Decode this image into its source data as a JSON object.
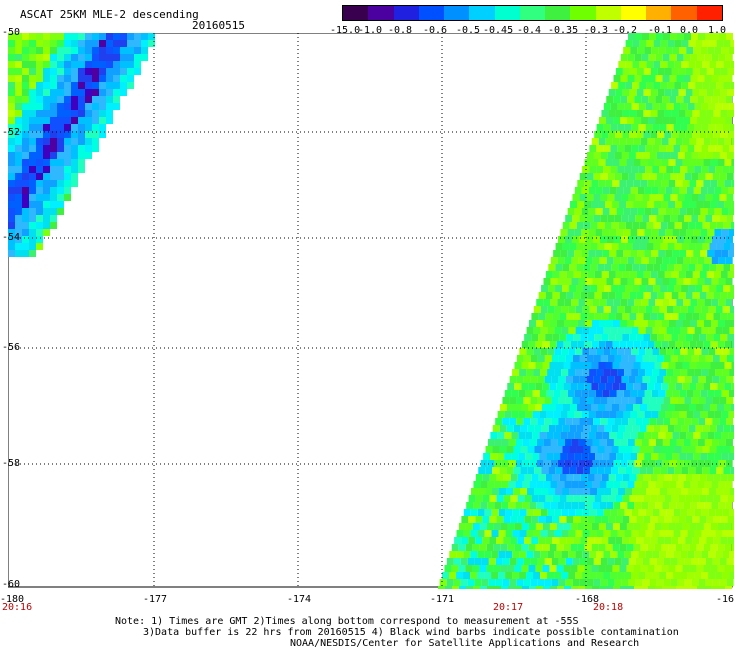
{
  "header": {
    "title": "ASCAT 25KM MLE-2 descending",
    "date": "20160515"
  },
  "colorbar": {
    "colors": [
      "#3a0050",
      "#4b00a0",
      "#2020e0",
      "#0050ff",
      "#0090ff",
      "#00d0ff",
      "#00ffd0",
      "#30ff80",
      "#40f040",
      "#70ff00",
      "#c0ff00",
      "#ffff00",
      "#ffb000",
      "#ff6000",
      "#ff2000"
    ],
    "labels": [
      "-15.0",
      "-1.0",
      "-0.8",
      "-0.6",
      "-0.5",
      "-0.45",
      "-0.4",
      "-0.35",
      "-0.3",
      "-0.2",
      "-0.1",
      "0.0",
      "1.0"
    ]
  },
  "axes": {
    "y_ticks": [
      "-50",
      "-52",
      "-54",
      "-56",
      "-58",
      "-60"
    ],
    "x_ticks": [
      "-180",
      "-177",
      "-174",
      "-171",
      "-168",
      "-16"
    ],
    "time_labels": [
      "20:16",
      "20:17",
      "20:18"
    ]
  },
  "notes": [
    "Note: 1) Times are GMT 2)Times along bottom correspond to measurement at -55S",
    "3)Data buffer is 22 hrs from 20160515 4) Black wind barbs indicate possible contamination",
    "NOAA/NESDIS/Center for Satellite Applications and Research"
  ]
}
